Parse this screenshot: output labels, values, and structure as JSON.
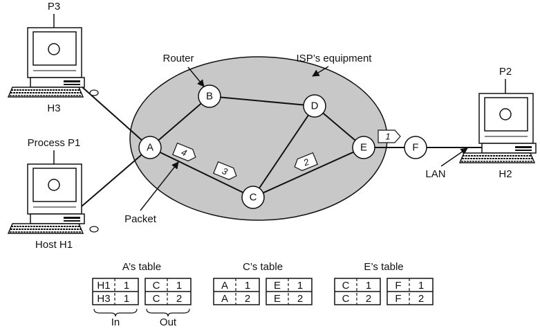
{
  "cloud_label": "ISP’s equipment",
  "router_label": "Router",
  "packet_label": "Packet",
  "lan_label": "LAN",
  "nodes": {
    "A": "A",
    "B": "B",
    "C": "C",
    "D": "D",
    "E": "E",
    "F": "F"
  },
  "packets": [
    "1",
    "2",
    "3",
    "4"
  ],
  "hosts": {
    "H1": {
      "name": "Host H1",
      "process": "Process P1"
    },
    "H2": {
      "name": "H2",
      "process": "P2"
    },
    "H3": {
      "name": "H3",
      "process": "P3"
    }
  },
  "tables": {
    "A": {
      "title": "A’s table",
      "in": [
        [
          "H1",
          "1"
        ],
        [
          "H3",
          "1"
        ]
      ],
      "out": [
        [
          "C",
          "1"
        ],
        [
          "C",
          "2"
        ]
      ],
      "in_label": "In",
      "out_label": "Out"
    },
    "C": {
      "title": "C’s table",
      "in": [
        [
          "A",
          "1"
        ],
        [
          "A",
          "2"
        ]
      ],
      "out": [
        [
          "E",
          "1"
        ],
        [
          "E",
          "2"
        ]
      ]
    },
    "E": {
      "title": "E’s table",
      "in": [
        [
          "C",
          "1"
        ],
        [
          "C",
          "2"
        ]
      ],
      "out": [
        [
          "F",
          "1"
        ],
        [
          "F",
          "2"
        ]
      ]
    }
  },
  "colors": {
    "cloud_fill": "#c8c8c8",
    "stroke": "#111111",
    "node_fill": "#ffffff"
  }
}
